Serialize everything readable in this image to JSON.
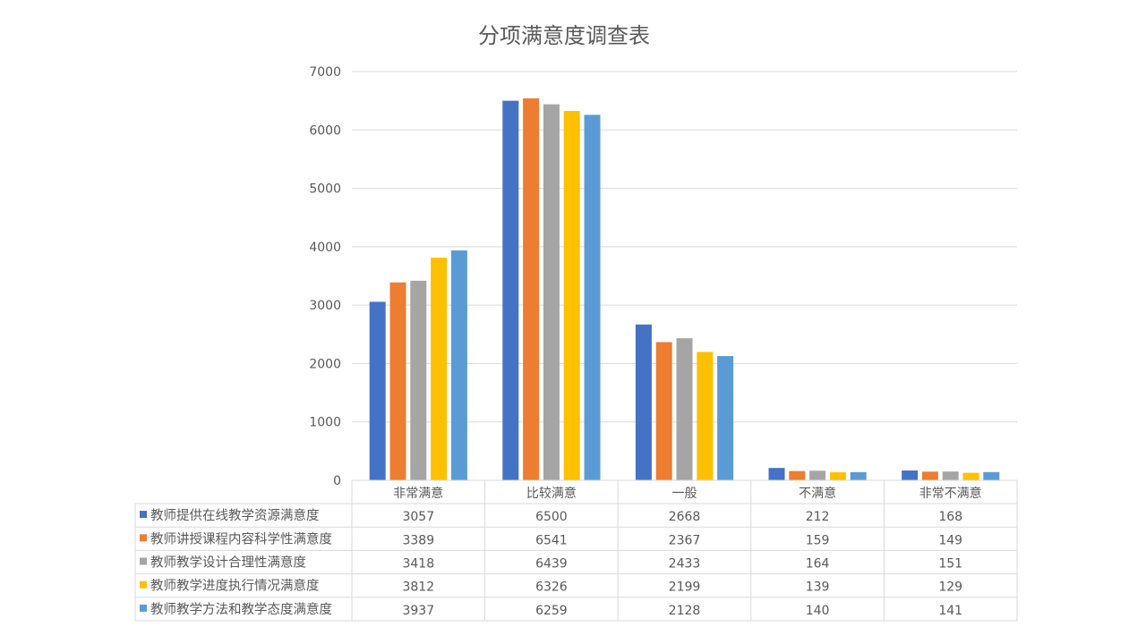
{
  "chart_data": {
    "type": "bar",
    "title": "分项满意度调查表",
    "categories": [
      "非常满意",
      "比较满意",
      "一般",
      "不满意",
      "非常不满意"
    ],
    "ylim": [
      0,
      7000
    ],
    "yticks": [
      0,
      1000,
      2000,
      3000,
      4000,
      5000,
      6000,
      7000
    ],
    "grid": true,
    "legend": "data-table",
    "series": [
      {
        "name": "教师提供在线教学资源满意度",
        "color": "#4472C4",
        "values": [
          3057,
          6500,
          2668,
          212,
          168
        ]
      },
      {
        "name": "教师讲授课程内容科学性满意度",
        "color": "#ED7D31",
        "values": [
          3389,
          6541,
          2367,
          159,
          149
        ]
      },
      {
        "name": "教师教学设计合理性满意度",
        "color": "#A5A5A5",
        "values": [
          3418,
          6439,
          2433,
          164,
          151
        ]
      },
      {
        "name": "教师教学进度执行情况满意度",
        "color": "#FFC000",
        "values": [
          3812,
          6326,
          2199,
          139,
          129
        ]
      },
      {
        "name": "教师教学方法和教学态度满意度",
        "color": "#5B9BD5",
        "values": [
          3937,
          6259,
          2128,
          140,
          141
        ]
      }
    ]
  }
}
